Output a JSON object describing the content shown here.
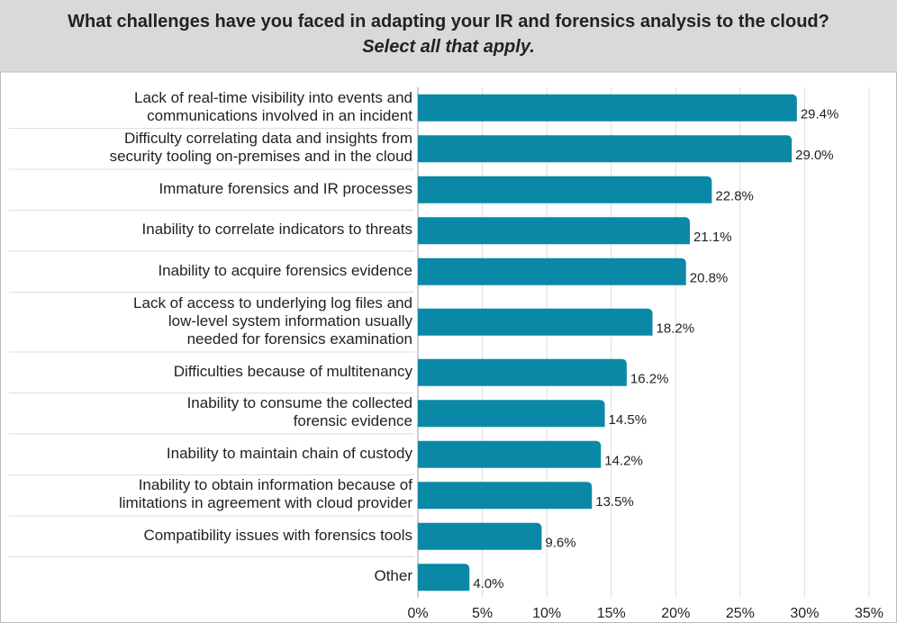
{
  "chart_data": {
    "type": "bar",
    "orientation": "horizontal",
    "title": "What challenges have you faced in adapting your IR and forensics analysis to the cloud?",
    "subtitle": "Select all that apply.",
    "categories": [
      "Lack of real-time visibility into events and\ncommunications involved in an incident",
      "Difficulty correlating data and insights from\nsecurity tooling on-premises and in the cloud",
      "Immature forensics and IR processes",
      "Inability to correlate indicators to threats",
      "Inability to acquire forensics evidence",
      "Lack of access to underlying log files and\nlow-level system information usually\nneeded for forensics examination",
      "Difficulties because of multitenancy",
      "Inability to consume the collected\nforensic evidence",
      "Inability to maintain chain of custody",
      "Inability to obtain information because of\nlimitations in agreement with cloud provider",
      "Compatibility issues with forensics tools",
      "Other"
    ],
    "values": [
      29.4,
      29.0,
      22.8,
      21.1,
      20.8,
      18.2,
      16.2,
      14.5,
      14.2,
      13.5,
      9.6,
      4.0
    ],
    "value_labels": [
      "29.4%",
      "29.0%",
      "22.8%",
      "21.1%",
      "20.8%",
      "18.2%",
      "16.2%",
      "14.5%",
      "14.2%",
      "13.5%",
      "9.6%",
      "4.0%"
    ],
    "color": "#0a89a7",
    "xlim": [
      0,
      35
    ],
    "xticks": [
      {
        "value": 0,
        "label": "0%"
      },
      {
        "value": 5,
        "label": "5%"
      },
      {
        "value": 10,
        "label": "10%"
      },
      {
        "value": 15,
        "label": "15%"
      },
      {
        "value": 20,
        "label": "20%"
      },
      {
        "value": 25,
        "label": "25%"
      },
      {
        "value": 30,
        "label": "30%"
      },
      {
        "value": 35,
        "label": "35%"
      }
    ],
    "grid": true
  }
}
